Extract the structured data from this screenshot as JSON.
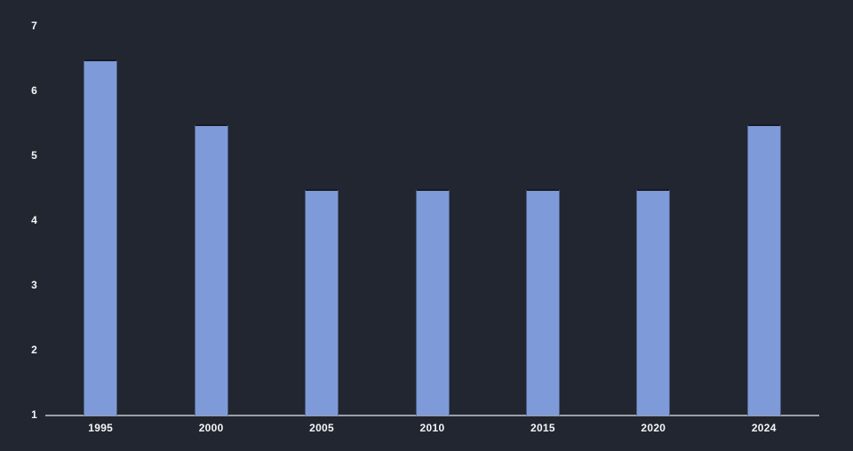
{
  "chart": {
    "background_color": "#212630",
    "bar_color": "#7f9ad8",
    "bar_border_color": "#171b26",
    "axis_line_color": "#9aa0a6",
    "tick_label_color": "#f5f6f8"
  },
  "chart_data": {
    "type": "bar",
    "categories": [
      "1995",
      "2000",
      "2005",
      "2010",
      "2015",
      "2020",
      "2024"
    ],
    "values": [
      6.5,
      5.5,
      4.5,
      4.5,
      4.5,
      4.5,
      5.5
    ],
    "title": "",
    "xlabel": "",
    "ylabel": "",
    "ylim": [
      1,
      7
    ],
    "yticks": [
      1,
      2,
      3,
      4,
      5,
      6,
      7
    ],
    "grid": false,
    "legend": false,
    "bar_color": "#7f9ad8",
    "background": "dark"
  }
}
